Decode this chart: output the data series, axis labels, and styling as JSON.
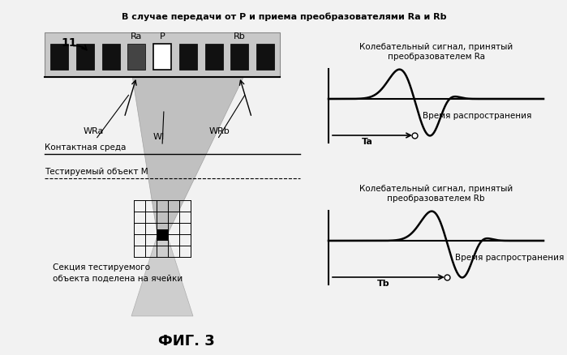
{
  "title": "В случае передачи от Р и приема преобразователями Ra и Rb",
  "fig_label": "ФИГ. 3",
  "bg_color": "#f2f2f2",
  "label_11": "11",
  "label_Ra": "Ra",
  "label_P": "P",
  "label_Rb": "Rb",
  "label_WRa": "WRa",
  "label_WI": "WI",
  "label_WRb": "WRb",
  "label_contact": "Контактная среда",
  "label_test_obj": "Тестируемый объект М",
  "label_section": "Секция тестируемого\nобъекта поделена на ячейки",
  "signal_Ra_title": "Колебательный сигнал, принятый\nпреобразователем Ra",
  "signal_Rb_title": "Колебательный сигнал, принятый\nпреобразователем Rb",
  "label_Ta": "Ta",
  "label_Tb": "Tb",
  "time_label": "Время распространения"
}
